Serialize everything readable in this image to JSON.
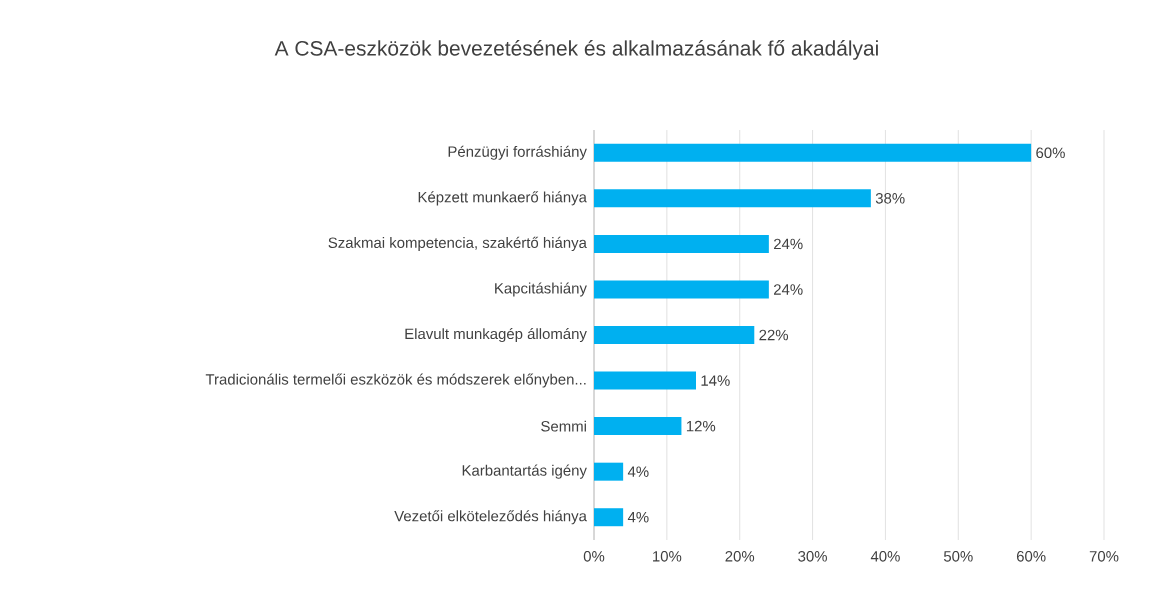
{
  "chart_data": {
    "type": "bar",
    "orientation": "horizontal",
    "title": "A CSA-eszközök bevezetésének és alkalmazásának fő akadályai",
    "categories": [
      "Pénzügyi forráshiány",
      "Képzett munkaerő hiánya",
      "Szakmai kompetencia, szakértő hiánya",
      "Kapcitáshiány",
      "Elavult munkagép állomány",
      "Tradicionális termelői eszközök és módszerek előnyben...",
      "Semmi",
      "Karbantartás igény",
      "Vezetői elköteleződés hiánya"
    ],
    "values": [
      60,
      38,
      24,
      24,
      22,
      14,
      12,
      4,
      4
    ],
    "value_labels": [
      "60%",
      "38%",
      "24%",
      "24%",
      "22%",
      "14%",
      "12%",
      "4%",
      "4%"
    ],
    "color": "#00b0f0",
    "xlim": [
      0,
      70
    ],
    "xticks": [
      {
        "value": 0,
        "label": "0%"
      },
      {
        "value": 10,
        "label": "10%"
      },
      {
        "value": 20,
        "label": "20%"
      },
      {
        "value": 30,
        "label": "30%"
      },
      {
        "value": 40,
        "label": "40%"
      },
      {
        "value": 50,
        "label": "50%"
      },
      {
        "value": 60,
        "label": "60%"
      },
      {
        "value": 70,
        "label": "70%"
      }
    ],
    "grid": "x"
  }
}
